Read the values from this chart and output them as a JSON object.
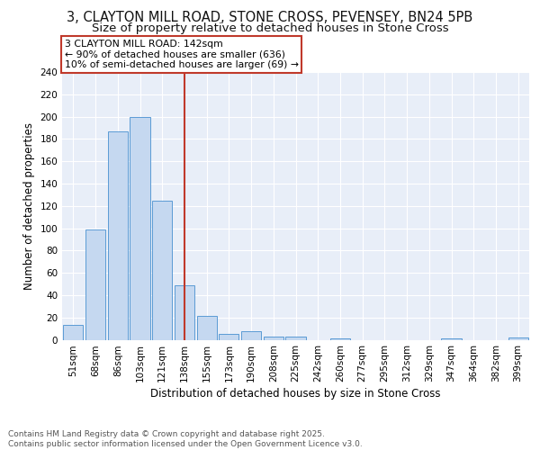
{
  "title1": "3, CLAYTON MILL ROAD, STONE CROSS, PEVENSEY, BN24 5PB",
  "title2": "Size of property relative to detached houses in Stone Cross",
  "xlabel": "Distribution of detached houses by size in Stone Cross",
  "ylabel": "Number of detached properties",
  "bar_labels": [
    "51sqm",
    "68sqm",
    "86sqm",
    "103sqm",
    "121sqm",
    "138sqm",
    "155sqm",
    "173sqm",
    "190sqm",
    "208sqm",
    "225sqm",
    "242sqm",
    "260sqm",
    "277sqm",
    "295sqm",
    "312sqm",
    "329sqm",
    "347sqm",
    "364sqm",
    "382sqm",
    "399sqm"
  ],
  "bar_values": [
    13,
    99,
    187,
    200,
    125,
    49,
    21,
    5,
    8,
    3,
    3,
    0,
    1,
    0,
    0,
    0,
    0,
    1,
    0,
    0,
    2
  ],
  "bar_color": "#c5d8f0",
  "bar_edge_color": "#5b9bd5",
  "vline_x_index": 5,
  "vline_color": "#c0392b",
  "annotation_text": "3 CLAYTON MILL ROAD: 142sqm\n← 90% of detached houses are smaller (636)\n10% of semi-detached houses are larger (69) →",
  "annotation_box_color": "#ffffff",
  "annotation_box_edge": "#c0392b",
  "ylim": [
    0,
    240
  ],
  "yticks": [
    0,
    20,
    40,
    60,
    80,
    100,
    120,
    140,
    160,
    180,
    200,
    220,
    240
  ],
  "background_color": "#e8eef8",
  "grid_color": "#ffffff",
  "footer_text": "Contains HM Land Registry data © Crown copyright and database right 2025.\nContains public sector information licensed under the Open Government Licence v3.0.",
  "title_fontsize": 10.5,
  "subtitle_fontsize": 9.5,
  "axis_label_fontsize": 8.5,
  "tick_fontsize": 7.5,
  "footer_fontsize": 6.5
}
